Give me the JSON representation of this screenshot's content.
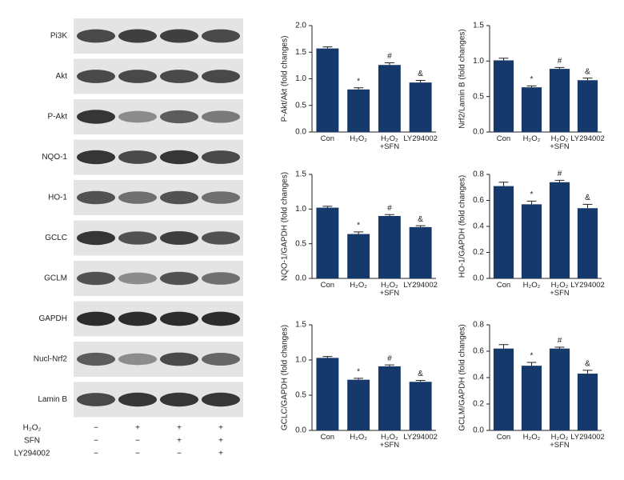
{
  "blot": {
    "bands": [
      "Pi3K",
      "Akt",
      "P-Akt",
      "NQO-1",
      "HO-1",
      "GCLC",
      "GCLM",
      "GAPDH",
      "Nucl-Nrf2",
      "Lamin B"
    ],
    "treatments": [
      {
        "name": "H₂O₂",
        "signs": [
          "−",
          "+",
          "+",
          "+"
        ]
      },
      {
        "name": "SFN",
        "signs": [
          "−",
          "−",
          "+",
          "+"
        ]
      },
      {
        "name": "LY294002",
        "signs": [
          "−",
          "−",
          "−",
          "+"
        ]
      }
    ]
  },
  "chart_data": [
    {
      "type": "bar",
      "ylabel": "P-Akt/Akt (fold changes)",
      "color": "#15396a",
      "categories": [
        "Con",
        "H₂O₂",
        "H₂O₂ +SFN",
        "LY294002"
      ],
      "values": [
        1.57,
        0.8,
        1.26,
        0.93
      ],
      "errors": [
        0.03,
        0.03,
        0.04,
        0.04
      ],
      "annotations": [
        null,
        "*",
        "#",
        "&"
      ],
      "ylim": [
        0,
        2.0
      ],
      "yticks": [
        {
          "value": 0,
          "label": "0.0"
        },
        {
          "value": 0.5,
          "label": "0.5"
        },
        {
          "value": 1.0,
          "label": "1.0"
        },
        {
          "value": 1.5,
          "label": "1.5"
        },
        {
          "value": 2.0,
          "label": "2.0"
        }
      ]
    },
    {
      "type": "bar",
      "ylabel": "Nrf2/Lamin B (fold changes)",
      "color": "#15396a",
      "categories": [
        "Con",
        "H₂O₂",
        "H₂O₂ +SFN",
        "LY294002"
      ],
      "values": [
        1.01,
        0.63,
        0.89,
        0.73
      ],
      "errors": [
        0.03,
        0.02,
        0.02,
        0.03
      ],
      "annotations": [
        null,
        "*",
        "#",
        "&"
      ],
      "ylim": [
        0,
        1.5
      ],
      "yticks": [
        {
          "value": 0,
          "label": "0.0"
        },
        {
          "value": 0.5,
          "label": "0.5"
        },
        {
          "value": 1.0,
          "label": "1.0"
        },
        {
          "value": 1.5,
          "label": "1.5"
        }
      ]
    },
    {
      "type": "bar",
      "ylabel": "NQO-1/GAPDH (fold changes)",
      "color": "#15396a",
      "categories": [
        "Con",
        "H₂O₂",
        "H₂O₂ +SFN",
        "LY294002"
      ],
      "values": [
        1.02,
        0.64,
        0.9,
        0.74
      ],
      "errors": [
        0.02,
        0.03,
        0.02,
        0.02
      ],
      "annotations": [
        null,
        "*",
        "#",
        "&"
      ],
      "ylim": [
        0,
        1.5
      ],
      "yticks": [
        {
          "value": 0,
          "label": "0.0"
        },
        {
          "value": 0.5,
          "label": "0.5"
        },
        {
          "value": 1.0,
          "label": "1.0"
        },
        {
          "value": 1.5,
          "label": "1.5"
        }
      ]
    },
    {
      "type": "bar",
      "ylabel": "HO-1/GAPDH (fold changes)",
      "color": "#15396a",
      "categories": [
        "Con",
        "H₂O₂",
        "H₂O₂ +SFN",
        "LY294002"
      ],
      "values": [
        0.71,
        0.57,
        0.74,
        0.54
      ],
      "errors": [
        0.03,
        0.025,
        0.015,
        0.03
      ],
      "annotations": [
        null,
        "*",
        "#",
        "&"
      ],
      "ylim": [
        0,
        0.8
      ],
      "yticks": [
        {
          "value": 0,
          "label": "0.0"
        },
        0.2,
        0.4,
        0.6,
        0.8
      ]
    },
    {
      "type": "bar",
      "ylabel": "GCLC/GAPDH (fold changes)",
      "color": "#15396a",
      "categories": [
        "Con",
        "H₂O₂",
        "H₂O₂ +SFN",
        "LY294002"
      ],
      "values": [
        1.03,
        0.72,
        0.91,
        0.69
      ],
      "errors": [
        0.02,
        0.02,
        0.02,
        0.02
      ],
      "annotations": [
        null,
        "*",
        "#",
        "&"
      ],
      "ylim": [
        0,
        1.5
      ],
      "yticks": [
        {
          "value": 0,
          "label": "0.0"
        },
        {
          "value": 0.5,
          "label": "0.5"
        },
        {
          "value": 1.0,
          "label": "1.0"
        },
        {
          "value": 1.5,
          "label": "1.5"
        }
      ]
    },
    {
      "type": "bar",
      "ylabel": "GCLM/GAPDH (fold changes)",
      "color": "#15396a",
      "categories": [
        "Con",
        "H₂O₂",
        "H₂O₂ +SFN",
        "LY294002"
      ],
      "values": [
        0.62,
        0.49,
        0.62,
        0.43
      ],
      "errors": [
        0.03,
        0.025,
        0.01,
        0.025
      ],
      "annotations": [
        null,
        "*",
        "#",
        "&"
      ],
      "ylim": [
        0,
        0.8
      ],
      "yticks": [
        {
          "value": 0,
          "label": "0.0"
        },
        0.2,
        0.4,
        0.6,
        0.8
      ]
    }
  ]
}
